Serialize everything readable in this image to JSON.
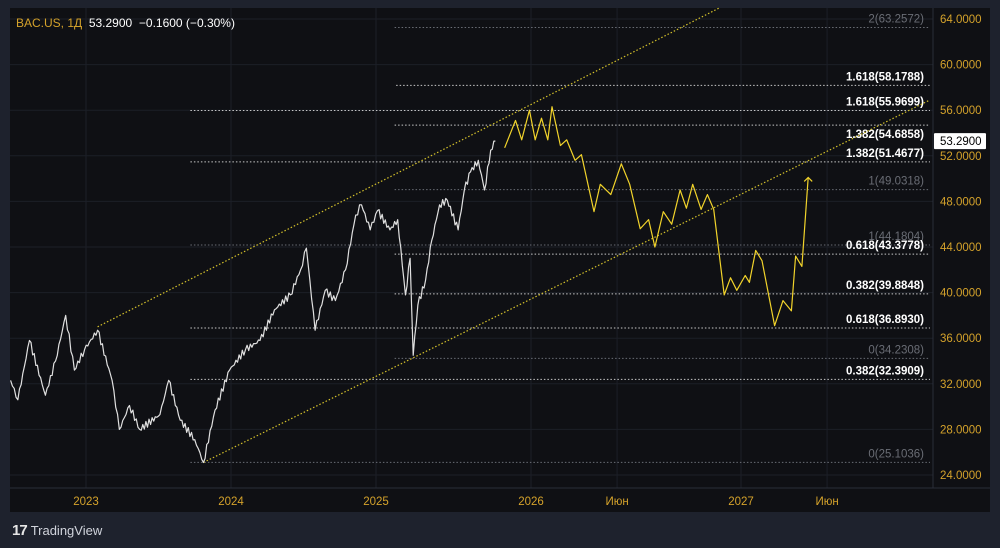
{
  "header": {
    "symbol": "BAC.US, 1Д",
    "price": "53.2900",
    "change": "−0.1600 (−0.30%)"
  },
  "brand": {
    "logo_text": "TradingView",
    "logo_icon": "tradingview-logo-icon"
  },
  "colors": {
    "accent": "#d4a22b",
    "history_line": "#e0e0e0",
    "projection_line": "#f2d42b",
    "channel": "#d4c12b",
    "background": "#0f1014",
    "frame": "#1e222d"
  },
  "chart_data": {
    "type": "line",
    "title": "",
    "xlabel": "",
    "ylabel": "",
    "ylim": [
      24,
      64
    ],
    "xlim": [
      2022.48,
      2027.9
    ],
    "grid": true,
    "x_ticks": [
      {
        "value": 2023.0,
        "label": "2023"
      },
      {
        "value": 2024.0,
        "label": "2024"
      },
      {
        "value": 2025.0,
        "label": "2025"
      },
      {
        "value": 2026.0,
        "label": "2026"
      },
      {
        "value": 2026.41,
        "label": "Июн"
      },
      {
        "value": 2027.0,
        "label": "2027"
      },
      {
        "value": 2027.41,
        "label": "Июн"
      }
    ],
    "y_ticks": [
      "24.0000",
      "28.0000",
      "32.0000",
      "36.0000",
      "40.0000",
      "44.0000",
      "48.0000",
      "52.0000",
      "56.0000",
      "60.0000",
      "64.0000"
    ],
    "last_price_label": "53.2900",
    "series": [
      {
        "kind": "history",
        "x": [
          2022.48,
          2022.53,
          2022.61,
          2022.72,
          2022.79,
          2022.86,
          2022.92,
          2022.99,
          2023.08,
          2023.18,
          2023.23,
          2023.3,
          2023.37,
          2023.51,
          2023.57,
          2023.65,
          2023.75,
          2023.81,
          2023.89,
          2023.99,
          2024.1,
          2024.2,
          2024.3,
          2024.41,
          2024.48,
          2024.52,
          2024.58,
          2024.65,
          2024.72,
          2024.79,
          2024.86,
          2024.9,
          2024.96,
          2025.01,
          2025.09,
          2025.14,
          2025.19,
          2025.22,
          2025.24,
          2025.27,
          2025.32,
          2025.36,
          2025.41,
          2025.46,
          2025.53,
          2025.57,
          2025.61,
          2025.66,
          2025.7,
          2025.74,
          2025.77
        ],
        "y": [
          32.3,
          30.6,
          35.8,
          31.0,
          34.0,
          38.0,
          33.2,
          35.0,
          36.7,
          32.3,
          28.0,
          30.1,
          28.0,
          29.3,
          32.3,
          28.8,
          27.1,
          25.1,
          29.7,
          33.2,
          35.0,
          35.8,
          38.5,
          39.8,
          42.0,
          43.9,
          36.7,
          40.2,
          39.3,
          42.0,
          46.8,
          47.7,
          45.5,
          47.2,
          45.5,
          46.4,
          39.8,
          43.0,
          34.5,
          38.9,
          41.1,
          44.6,
          47.7,
          48.1,
          45.5,
          49.0,
          50.6,
          51.6,
          49.0,
          52.5,
          53.3
        ]
      },
      {
        "kind": "projection",
        "x": [
          2025.83,
          2025.9,
          2025.94,
          2025.99,
          2026.02,
          2026.05,
          2026.08,
          2026.1,
          2026.14,
          2026.17,
          2026.21,
          2026.24,
          2026.3,
          2026.33,
          2026.38,
          2026.43,
          2026.47,
          2026.52,
          2026.56,
          2026.59,
          2026.63,
          2026.67,
          2026.71,
          2026.74,
          2026.77,
          2026.81,
          2026.84,
          2026.87,
          2026.92,
          2026.95,
          2026.98,
          2027.02,
          2027.04,
          2027.07,
          2027.1,
          2027.16,
          2027.2,
          2027.24,
          2027.26,
          2027.29,
          2027.32
        ],
        "y": [
          52.7,
          55.1,
          53.4,
          56.0,
          53.4,
          55.3,
          53.4,
          56.3,
          52.9,
          53.4,
          51.6,
          52.1,
          47.1,
          49.5,
          48.6,
          51.3,
          49.5,
          45.6,
          46.4,
          44.0,
          47.1,
          46.0,
          49.0,
          47.4,
          49.5,
          47.3,
          48.6,
          47.3,
          39.8,
          41.3,
          40.2,
          41.5,
          40.9,
          43.7,
          42.8,
          37.1,
          39.3,
          38.4,
          43.2,
          42.3,
          50.1
        ]
      }
    ],
    "channel": [
      {
        "from": [
          2023.08,
          37.0
        ],
        "to": [
          2026.9,
          65.0
        ]
      },
      {
        "from": [
          2023.81,
          25.1
        ],
        "to": [
          2027.9,
          56.9
        ]
      }
    ],
    "fib_levels": [
      {
        "label": "2(63.2572)",
        "price": 63.2572,
        "start": 2025.12,
        "muted": true
      },
      {
        "label": "1.618(58.1788)",
        "price": 58.1788,
        "start": 2025.13,
        "muted": false
      },
      {
        "label": "1.618(55.9699)",
        "price": 55.9699,
        "start": 2023.72,
        "muted": false
      },
      {
        "label": "1.382(54.6858)",
        "price": 54.6858,
        "start": 2025.12,
        "muted": false,
        "below": true
      },
      {
        "label": "1.382(51.4677)",
        "price": 51.4677,
        "start": 2023.72,
        "muted": false
      },
      {
        "label": "1(49.0318)",
        "price": 49.0318,
        "start": 2025.12,
        "muted": true
      },
      {
        "label": "1(44.1804)",
        "price": 44.1804,
        "start": 2023.72,
        "muted": true
      },
      {
        "label": "0.618(43.3778)",
        "price": 43.3778,
        "start": 2025.12,
        "muted": false
      },
      {
        "label": "0.382(39.8848)",
        "price": 39.8848,
        "start": 2025.12,
        "muted": false
      },
      {
        "label": "0.618(36.8930)",
        "price": 36.893,
        "start": 2023.72,
        "muted": false
      },
      {
        "label": "0(34.2308)",
        "price": 34.2308,
        "start": 2025.12,
        "muted": true
      },
      {
        "label": "0.382(32.3909)",
        "price": 32.3909,
        "start": 2023.72,
        "muted": false
      },
      {
        "label": "0(25.1036)",
        "price": 25.1036,
        "start": 2023.72,
        "muted": true
      }
    ]
  }
}
